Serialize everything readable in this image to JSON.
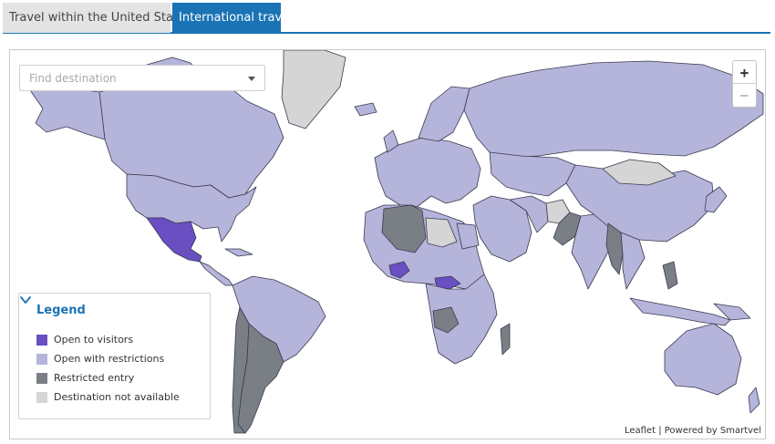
{
  "tabs": [
    {
      "label": "Travel within the United States",
      "active": false
    },
    {
      "label": "International travel",
      "active": true
    }
  ],
  "search": {
    "placeholder": "Find destination"
  },
  "zoom": {
    "in_label": "+",
    "out_label": "−"
  },
  "legend": {
    "title": "Legend",
    "items": [
      {
        "label": "Open to visitors",
        "color": "#6a4fc2"
      },
      {
        "label": "Open with restrictions",
        "color": "#b5b4da"
      },
      {
        "label": "Restricted entry",
        "color": "#7a7f85"
      },
      {
        "label": "Destination not available",
        "color": "#d5d5d5"
      }
    ]
  },
  "attribution": {
    "leaflet": "Leaflet",
    "separator": " | ",
    "powered": "Powered by Smartvel"
  },
  "map": {
    "colors": {
      "open": "#6a4fc2",
      "restrictions": "#b5b4da",
      "restricted": "#7a7f85",
      "unavailable": "#d5d5d5",
      "border": "#3a3a50"
    },
    "regions": [
      {
        "name": "Canada",
        "status": "restrictions"
      },
      {
        "name": "Alaska",
        "status": "restrictions"
      },
      {
        "name": "Greenland",
        "status": "unavailable"
      },
      {
        "name": "United States",
        "status": "restrictions"
      },
      {
        "name": "Mexico",
        "status": "open"
      },
      {
        "name": "Central America",
        "status": "restrictions"
      },
      {
        "name": "Cuba",
        "status": "restrictions"
      },
      {
        "name": "South America",
        "status": "restrictions"
      },
      {
        "name": "Chile",
        "status": "restricted"
      },
      {
        "name": "Argentina",
        "status": "restricted"
      },
      {
        "name": "Europe",
        "status": "restrictions"
      },
      {
        "name": "Scandinavia",
        "status": "restrictions"
      },
      {
        "name": "Russia",
        "status": "restrictions"
      },
      {
        "name": "Algeria",
        "status": "restricted"
      },
      {
        "name": "Libya",
        "status": "unavailable"
      },
      {
        "name": "Egypt",
        "status": "restrictions"
      },
      {
        "name": "West Africa",
        "status": "restrictions"
      },
      {
        "name": "Burkina Faso",
        "status": "open"
      },
      {
        "name": "Central African Republic",
        "status": "open"
      },
      {
        "name": "Angola",
        "status": "restricted"
      },
      {
        "name": "Southern Africa",
        "status": "restrictions"
      },
      {
        "name": "Madagascar",
        "status": "restricted"
      },
      {
        "name": "Middle East",
        "status": "restrictions"
      },
      {
        "name": "Iran",
        "status": "restrictions"
      },
      {
        "name": "Afghanistan",
        "status": "unavailable"
      },
      {
        "name": "Pakistan",
        "status": "restricted"
      },
      {
        "name": "India",
        "status": "restrictions"
      },
      {
        "name": "Mongolia",
        "status": "unavailable"
      },
      {
        "name": "China",
        "status": "restrictions"
      },
      {
        "name": "Myanmar",
        "status": "restricted"
      },
      {
        "name": "Southeast Asia",
        "status": "restrictions"
      },
      {
        "name": "Philippines",
        "status": "restricted"
      },
      {
        "name": "Indonesia",
        "status": "restrictions"
      },
      {
        "name": "Japan",
        "status": "restrictions"
      },
      {
        "name": "Australia",
        "status": "restrictions"
      },
      {
        "name": "New Zealand",
        "status": "restrictions"
      }
    ]
  }
}
